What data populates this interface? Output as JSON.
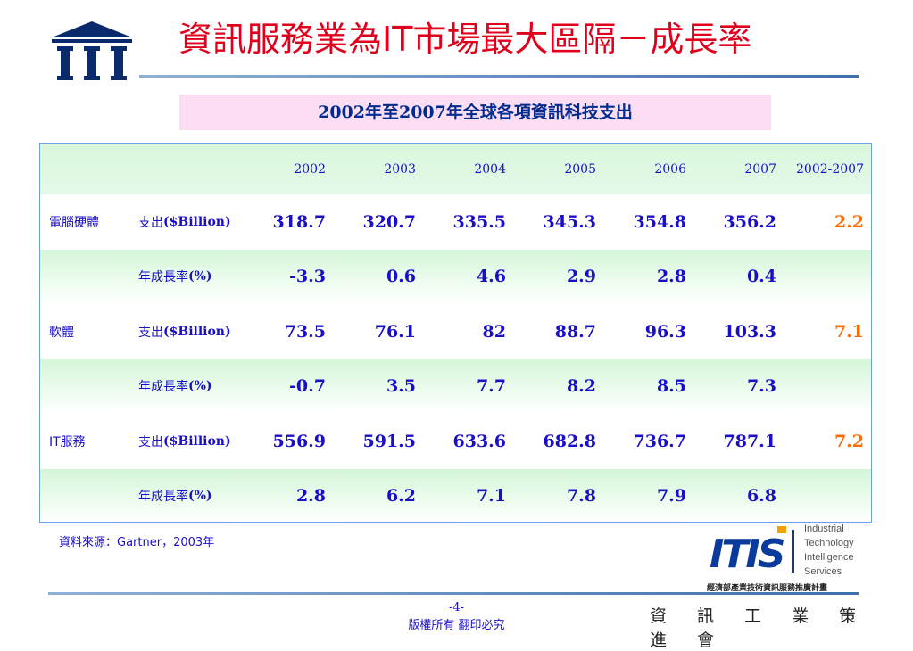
{
  "page": {
    "title": "資訊服務業為IT市場最大區隔－成長率",
    "subtitle": "2002年至2007年全球各項資訊科技支出",
    "source": "資料來源：Gartner，2003年",
    "page_number": "-4-",
    "copyright": "版權所有  翻印必究",
    "organization": "資 訊 工 業 策 進 會",
    "itis_lines": [
      "Industrial",
      "Technology",
      "Intelligence",
      "Services"
    ],
    "itis_program": "經濟部產業技術資訊服務推廣計畫",
    "logo_text": "III",
    "itis_logo_text": "ITIS"
  },
  "colors": {
    "title": "#e0001b",
    "text": "#1a0fc8",
    "cagr": "#ff6a00",
    "subtitle_bg": "#fdddf4",
    "row_stripe": "#d4f6d8",
    "border": "#6ea0ea"
  },
  "table": {
    "headers": [
      "2002",
      "2003",
      "2004",
      "2005",
      "2006",
      "2007",
      "2002-2007"
    ],
    "rows": [
      {
        "category": "電腦硬體",
        "metric": "支出($Billion)",
        "values": [
          "318.7",
          "320.7",
          "335.5",
          "345.3",
          "354.8",
          "356.2"
        ],
        "cagr": "2.2"
      },
      {
        "category": "",
        "metric": "年成長率(%)",
        "values": [
          "-3.3",
          "0.6",
          "4.6",
          "2.9",
          "2.8",
          "0.4"
        ],
        "cagr": ""
      },
      {
        "category": "軟體",
        "metric": "支出($Billion)",
        "values": [
          "73.5",
          "76.1",
          "82",
          "88.7",
          "96.3",
          "103.3"
        ],
        "cagr": "7.1"
      },
      {
        "category": "",
        "metric": "年成長率(%)",
        "values": [
          "-0.7",
          "3.5",
          "7.7",
          "8.2",
          "8.5",
          "7.3"
        ],
        "cagr": ""
      },
      {
        "category": "IT服務",
        "metric": "支出($Billion)",
        "values": [
          "556.9",
          "591.5",
          "633.6",
          "682.8",
          "736.7",
          "787.1"
        ],
        "cagr": "7.2"
      },
      {
        "category": "",
        "metric": "年成長率(%)",
        "values": [
          "2.8",
          "6.2",
          "7.1",
          "7.8",
          "7.9",
          "6.8"
        ],
        "cagr": ""
      }
    ]
  }
}
